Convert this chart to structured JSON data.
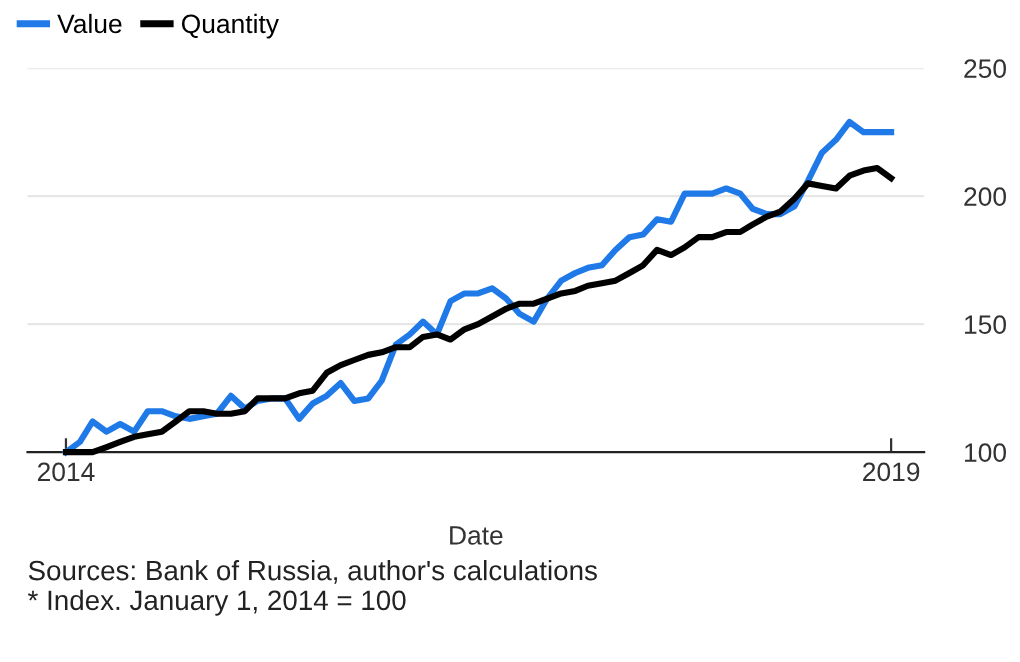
{
  "chart_data": {
    "type": "line",
    "xlabel": "Date",
    "annotations": [
      "Sources: Bank of Russia, author's calculations",
      "* Index. January 1, 2014 = 100"
    ],
    "x": [
      "2014-01",
      "2014-02",
      "2014-03",
      "2014-04",
      "2014-05",
      "2014-06",
      "2014-07",
      "2014-08",
      "2014-09",
      "2014-10",
      "2014-11",
      "2014-12",
      "2015-01",
      "2015-02",
      "2015-03",
      "2015-04",
      "2015-05",
      "2015-06",
      "2015-07",
      "2015-08",
      "2015-09",
      "2015-10",
      "2015-11",
      "2015-12",
      "2016-01",
      "2016-02",
      "2016-03",
      "2016-04",
      "2016-05",
      "2016-06",
      "2016-07",
      "2016-08",
      "2016-09",
      "2016-10",
      "2016-11",
      "2016-12",
      "2017-01",
      "2017-02",
      "2017-03",
      "2017-04",
      "2017-05",
      "2017-06",
      "2017-07",
      "2017-08",
      "2017-09",
      "2017-10",
      "2017-11",
      "2017-12",
      "2018-01",
      "2018-02",
      "2018-03",
      "2018-04",
      "2018-05",
      "2018-06",
      "2018-07",
      "2018-08",
      "2018-09",
      "2018-10",
      "2018-11",
      "2018-12",
      "2019-01"
    ],
    "series": [
      {
        "name": "Value",
        "color": "#1f7ae8",
        "values": [
          100,
          104,
          112,
          108,
          111,
          108,
          116,
          116,
          114,
          113,
          114,
          115,
          122,
          117,
          120,
          121,
          121,
          113,
          119,
          122,
          127,
          120,
          121,
          128,
          142,
          146,
          151,
          146,
          159,
          162,
          162,
          164,
          160,
          154,
          151,
          160,
          167,
          170,
          172,
          173,
          179,
          184,
          185,
          191,
          190,
          201,
          201,
          201,
          203,
          201,
          195,
          193,
          193,
          196,
          206,
          217,
          222,
          229,
          225,
          225,
          225
        ]
      },
      {
        "name": "Quantity",
        "color": "#000000",
        "values": [
          100,
          100,
          100,
          102,
          104,
          106,
          107,
          108,
          112,
          116,
          116,
          115,
          115,
          116,
          121,
          121,
          121,
          123,
          124,
          131,
          134,
          136,
          138,
          139,
          141,
          141,
          145,
          146,
          144,
          148,
          150,
          153,
          156,
          158,
          158,
          160,
          162,
          163,
          165,
          166,
          167,
          170,
          173,
          179,
          177,
          180,
          184,
          184,
          186,
          186,
          189,
          192,
          194,
          199,
          205,
          204,
          203,
          208,
          210,
          211,
          207
        ]
      }
    ],
    "xlim": [
      "2013-10-08",
      "2019-03-15"
    ],
    "xticks": [
      {
        "value": "2014-01",
        "label": "2014"
      },
      {
        "value": "2019-01",
        "label": "2019"
      }
    ],
    "ylim": [
      100,
      250
    ],
    "yticks": [
      100,
      150,
      200,
      250
    ],
    "grid": "y",
    "legend": "top left",
    "line_style": "solid"
  }
}
